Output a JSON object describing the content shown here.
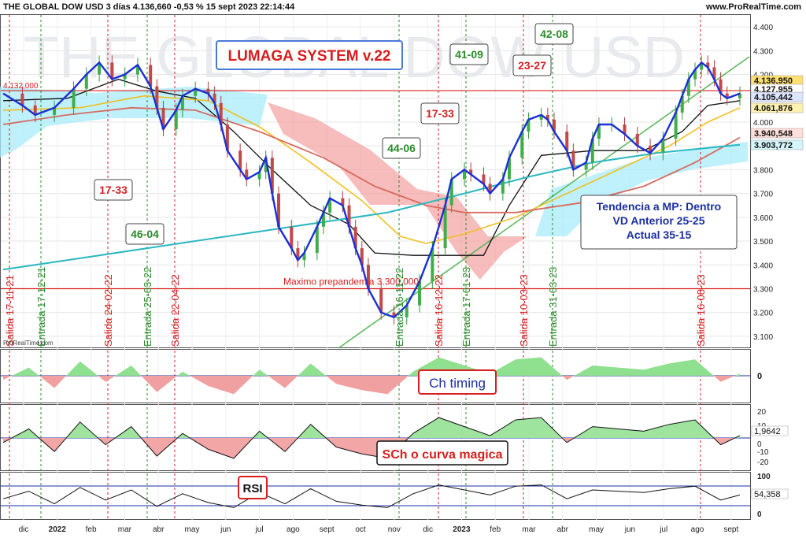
{
  "header": {
    "title": "THE GLOBAL DOW USD 3 días 4.136,660 -0,53 % 15 sept 2023 22:14:44",
    "site": "www.ProRealTime.com",
    "watermark": "THE GLOBAL DOW USD",
    "small_logo": "ProRealTime.com"
  },
  "colors": {
    "red_line": "#d81e1e",
    "entrada": "#2a8a2a",
    "salida": "#d42020",
    "price_blue": "#1a2fd6",
    "ma_yellow": "#f0c020",
    "ma_brown": "#d86a60",
    "ma_teal": "#2ab8c0",
    "cloud_red": "#f4a0a0",
    "cloud_cyan": "#a8ecfa"
  },
  "chart_data": [
    {
      "type": "line",
      "title": "LUMAGA SYSTEM v.22",
      "price_axis": {
        "ylim": [
          3050,
          4450
        ],
        "ticks": [
          "4.400",
          "4.300",
          "4.200",
          "4.100",
          "4.000",
          "3.900",
          "3.800",
          "3.700",
          "3.600",
          "3.500",
          "3.400",
          "3.300",
          "3.200",
          "3.100"
        ]
      },
      "time_axis": [
        "dic",
        "2022",
        "feb",
        "mar",
        "abr",
        "may",
        "jun",
        "jul",
        "ago",
        "sept",
        "oct",
        "nov",
        "dic",
        "2023",
        "feb",
        "mar",
        "abr",
        "may",
        "jun",
        "jul",
        "ago",
        "sept"
      ],
      "price_series": [
        [
          0,
          4120
        ],
        [
          3,
          4070
        ],
        [
          5,
          4030
        ],
        [
          8,
          4060
        ],
        [
          11,
          4140
        ],
        [
          13,
          4200
        ],
        [
          15,
          4250
        ],
        [
          17,
          4180
        ],
        [
          19,
          4200
        ],
        [
          21,
          4240
        ],
        [
          23,
          4150
        ],
        [
          24,
          4060
        ],
        [
          25,
          3970
        ],
        [
          27,
          4050
        ],
        [
          28,
          4110
        ],
        [
          30,
          4140
        ],
        [
          32,
          4120
        ],
        [
          33,
          4080
        ],
        [
          34,
          3990
        ],
        [
          35,
          3880
        ],
        [
          37,
          3800
        ],
        [
          38,
          3760
        ],
        [
          40,
          3790
        ],
        [
          41,
          3850
        ],
        [
          42,
          3700
        ],
        [
          43,
          3560
        ],
        [
          45,
          3470
        ],
        [
          46,
          3420
        ],
        [
          47,
          3450
        ],
        [
          49,
          3560
        ],
        [
          50,
          3620
        ],
        [
          51,
          3680
        ],
        [
          53,
          3650
        ],
        [
          54,
          3560
        ],
        [
          55,
          3470
        ],
        [
          56,
          3400
        ],
        [
          57,
          3300
        ],
        [
          59,
          3200
        ],
        [
          61,
          3180
        ],
        [
          63,
          3230
        ],
        [
          65,
          3330
        ],
        [
          67,
          3470
        ],
        [
          69,
          3650
        ],
        [
          70,
          3760
        ],
        [
          72,
          3800
        ],
        [
          73,
          3780
        ],
        [
          75,
          3740
        ],
        [
          76,
          3700
        ],
        [
          78,
          3760
        ],
        [
          79,
          3850
        ],
        [
          81,
          3960
        ],
        [
          82,
          4010
        ],
        [
          84,
          4030
        ],
        [
          85,
          4010
        ],
        [
          86,
          3960
        ],
        [
          88,
          3880
        ],
        [
          89,
          3800
        ],
        [
          91,
          3830
        ],
        [
          92,
          3930
        ],
        [
          93,
          3990
        ],
        [
          95,
          3990
        ],
        [
          97,
          3950
        ],
        [
          99,
          3900
        ],
        [
          101,
          3870
        ],
        [
          103,
          3930
        ],
        [
          105,
          4040
        ],
        [
          106,
          4110
        ],
        [
          107,
          4180
        ],
        [
          108,
          4220
        ],
        [
          109,
          4250
        ],
        [
          110,
          4230
        ],
        [
          111,
          4180
        ],
        [
          112,
          4120
        ],
        [
          113,
          4100
        ],
        [
          115,
          4120
        ]
      ],
      "indicators": [
        {
          "name": "Ch timing",
          "baseline": "0",
          "ticks": [
            "0"
          ]
        },
        {
          "name": "SCh o curva magica",
          "ticks": [
            "20",
            "10",
            "1,9642",
            "0",
            "-10",
            "-20"
          ]
        },
        {
          "name": "RSI",
          "ticks": [
            "100",
            "54,358",
            "0"
          ]
        }
      ],
      "right_labels": [
        {
          "text": "4.136,950",
          "bg": "#ffe070"
        },
        {
          "text": "4.127,955",
          "bg": "#ffffff"
        },
        {
          "text": "4.105,442",
          "bg": "#dde6ff"
        },
        {
          "text": "4.061,876",
          "bg": "#fff1b0"
        },
        {
          "text": "3.940,548",
          "bg": "#ffe0dc"
        },
        {
          "text": "3.903,772",
          "bg": "#d4f6fb"
        }
      ],
      "left_level": "4.132,000",
      "pre_pandemic_label": "Maximo prepandemia  3.300,000",
      "vertical_signals": [
        {
          "text": "Salida 17-11-21",
          "kind": "salida"
        },
        {
          "text": "Entrada 17-12-21",
          "kind": "entrada"
        },
        {
          "text": "Salida 24-02-22",
          "kind": "salida"
        },
        {
          "text": "Entrada 25-03-22",
          "kind": "entrada"
        },
        {
          "text": "Salida 22-04-22",
          "kind": "salida"
        },
        {
          "text": "Entrada 16-11-22",
          "kind": "entrada"
        },
        {
          "text": "Salida 16-12-22",
          "kind": "salida"
        },
        {
          "text": "Entrada 17-01-23",
          "kind": "entrada"
        },
        {
          "text": "Salida 10-03-23",
          "kind": "salida"
        },
        {
          "text": "Entrada 31-03-23",
          "kind": "entrada"
        },
        {
          "text": "Salida 16-08-23",
          "kind": "salida"
        }
      ],
      "score_boxes": [
        {
          "text": "17-33",
          "kind": "salida"
        },
        {
          "text": "46-04",
          "kind": "entrada"
        },
        {
          "text": "44-06",
          "kind": "entrada"
        },
        {
          "text": "17-33",
          "kind": "salida"
        },
        {
          "text": "41-09",
          "kind": "entrada"
        },
        {
          "text": "23-27",
          "kind": "salida"
        },
        {
          "text": "42-08",
          "kind": "entrada"
        }
      ],
      "trend_box": [
        "Tendencia a MP: Dentro",
        "VD Anterior 25-25",
        "Actual 35-15"
      ]
    }
  ]
}
